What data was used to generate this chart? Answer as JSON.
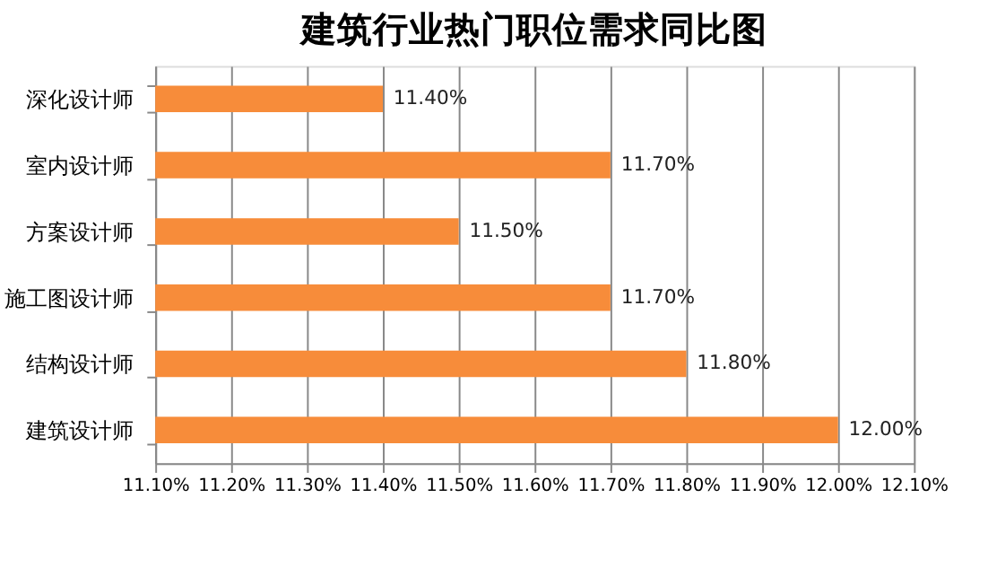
{
  "chart_data": {
    "type": "bar",
    "orientation": "horizontal",
    "title": "建筑行业热门职位需求同比图",
    "categories": [
      "深化设计师",
      "室内设计师",
      "方案设计师",
      "施工图设计师",
      "结构设计师",
      "建筑设计师"
    ],
    "values": [
      11.4,
      11.7,
      11.5,
      11.7,
      11.8,
      12.0
    ],
    "value_labels": [
      "11.40%",
      "11.70%",
      "11.50%",
      "11.70%",
      "11.80%",
      "12.00%"
    ],
    "color": "#f78c3a",
    "xlim": [
      11.1,
      12.1
    ],
    "xticks": [
      {
        "value": 11.1,
        "label": "11.10%"
      },
      {
        "value": 11.2,
        "label": "11.20%"
      },
      {
        "value": 11.3,
        "label": "11.30%"
      },
      {
        "value": 11.4,
        "label": "11.40%"
      },
      {
        "value": 11.5,
        "label": "11.50%"
      },
      {
        "value": 11.6,
        "label": "11.60%"
      },
      {
        "value": 11.7,
        "label": "11.70%"
      },
      {
        "value": 11.8,
        "label": "11.80%"
      },
      {
        "value": 11.9,
        "label": "11.90%"
      },
      {
        "value": 12.0,
        "label": "12.00%"
      },
      {
        "value": 12.1,
        "label": "12.10%"
      }
    ],
    "grid": "x"
  }
}
